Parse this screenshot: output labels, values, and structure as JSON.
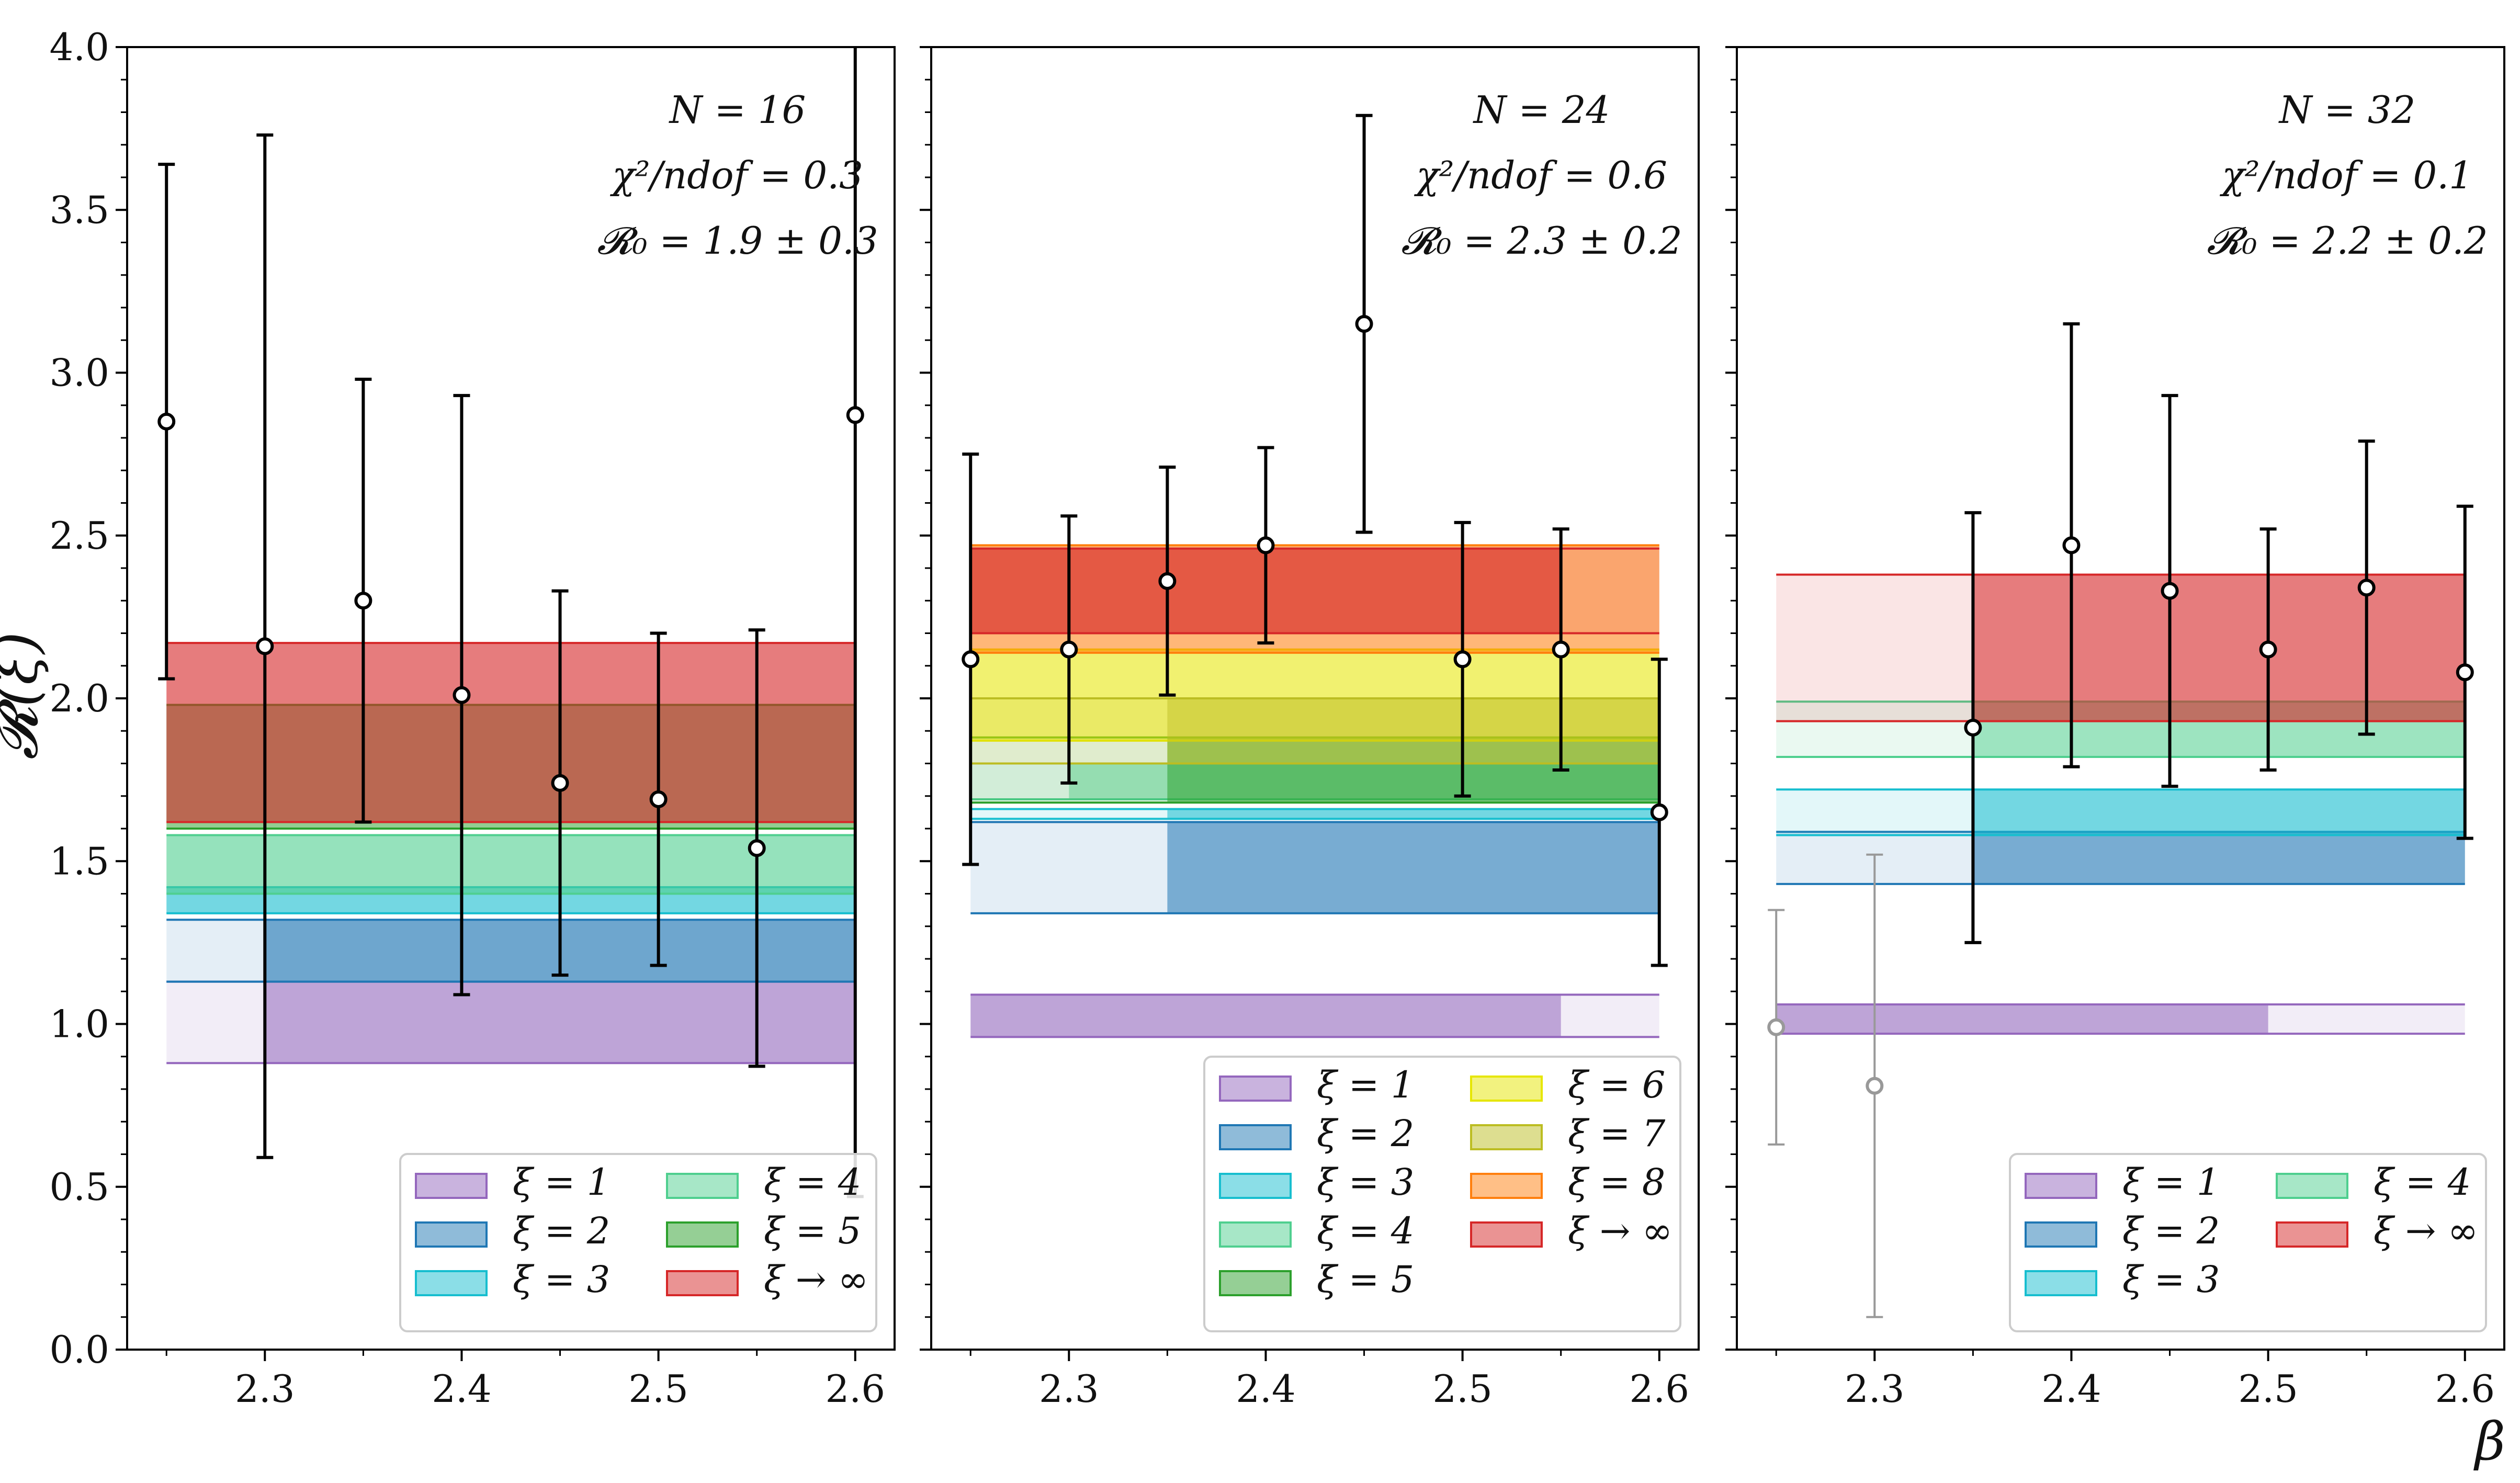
{
  "figure": {
    "y_axis_label": "𝓡(ξ)",
    "x_axis_label": "β"
  },
  "colors": {
    "xi1": "#9467bd",
    "xi2": "#1f77b4",
    "xi3": "#17becf",
    "xi4": "#4fcf8f",
    "xi5": "#2ca02c",
    "xi6": "#e6e600",
    "xi7": "#bcbd22",
    "xi8": "#ff7f0e",
    "xiinf": "#d62728",
    "points": "#000000",
    "excluded_points": "#999999"
  },
  "chart_data": [
    {
      "type": "scatter",
      "name": "N = 16",
      "annotations": [
        "N = 16",
        "χ²/ndof = 0.3",
        "𝓡₀ = 1.9 ± 0.3"
      ],
      "x_ticks": [
        "2.3",
        "2.4",
        "2.5",
        "2.6"
      ],
      "y_ticks": [
        "0.0",
        "0.5",
        "1.0",
        "1.5",
        "2.0",
        "2.5",
        "3.0",
        "3.5",
        "4.0"
      ],
      "xlim": [
        2.23,
        2.62
      ],
      "ylim": [
        0,
        4
      ],
      "series": [
        {
          "x": 2.25,
          "y": 2.85,
          "err_low": 0.79,
          "err_high": 0.79,
          "excluded": false
        },
        {
          "x": 2.3,
          "y": 2.16,
          "err_low": 1.57,
          "err_high": 1.57,
          "excluded": false
        },
        {
          "x": 2.35,
          "y": 2.3,
          "err_low": 0.68,
          "err_high": 0.68,
          "excluded": false
        },
        {
          "x": 2.4,
          "y": 2.01,
          "err_low": 0.92,
          "err_high": 0.92,
          "excluded": false
        },
        {
          "x": 2.45,
          "y": 1.74,
          "err_low": 0.59,
          "err_high": 0.59,
          "excluded": false
        },
        {
          "x": 2.5,
          "y": 1.69,
          "err_low": 0.51,
          "err_high": 0.51,
          "excluded": false
        },
        {
          "x": 2.55,
          "y": 1.54,
          "err_low": 0.67,
          "err_high": 0.67,
          "excluded": false
        },
        {
          "x": 2.6,
          "y": 2.87,
          "err_low": 2.4,
          "err_high": 2.4,
          "excluded": false
        }
      ],
      "bands": [
        {
          "color_key": "xi1",
          "y_low": 0.88,
          "y_high": 1.13,
          "fit_x_start": 2.3,
          "x_start": 2.25,
          "x_end": 2.6,
          "fit_opacity": 0.55
        },
        {
          "color_key": "xi2",
          "y_low": 1.13,
          "y_high": 1.32,
          "fit_x_start": 2.3,
          "x_start": 2.25,
          "x_end": 2.6,
          "fit_opacity": 0.6
        },
        {
          "color_key": "xi3",
          "y_low": 1.34,
          "y_high": 1.42,
          "fit_x_start": 2.25,
          "x_start": 2.25,
          "x_end": 2.6,
          "fit_opacity": 0.55
        },
        {
          "color_key": "xi4",
          "y_low": 1.4,
          "y_high": 1.58,
          "fit_x_start": 2.25,
          "x_start": 2.25,
          "x_end": 2.6,
          "fit_opacity": 0.55
        },
        {
          "color_key": "xi5",
          "y_low": 1.6,
          "y_high": 1.98,
          "fit_x_start": 2.25,
          "x_start": 2.25,
          "x_end": 2.6,
          "fit_opacity": 0.45
        },
        {
          "color_key": "xiinf",
          "y_low": 1.62,
          "y_high": 2.17,
          "fit_x_start": 2.25,
          "x_start": 2.25,
          "x_end": 2.6,
          "fit_opacity": 0.55
        }
      ],
      "legend": {
        "position": "lower right",
        "columns": 2,
        "entries": [
          {
            "label": "ξ = 1",
            "color_key": "xi1"
          },
          {
            "label": "ξ = 2",
            "color_key": "xi2"
          },
          {
            "label": "ξ = 3",
            "color_key": "xi3"
          },
          {
            "label": "ξ = 4",
            "color_key": "xi4"
          },
          {
            "label": "ξ = 5",
            "color_key": "xi5"
          },
          {
            "label": "ξ → ∞",
            "color_key": "xiinf"
          }
        ]
      }
    },
    {
      "type": "scatter",
      "name": "N = 24",
      "annotations": [
        "N = 24",
        "χ²/ndof = 0.6",
        "𝓡₀ = 2.3 ± 0.2"
      ],
      "x_ticks": [
        "2.3",
        "2.4",
        "2.5",
        "2.6"
      ],
      "y_ticks": [],
      "xlim": [
        2.23,
        2.62
      ],
      "ylim": [
        0,
        4
      ],
      "series": [
        {
          "x": 2.25,
          "y": 2.12,
          "err_low": 0.63,
          "err_high": 0.63,
          "excluded": false
        },
        {
          "x": 2.3,
          "y": 2.15,
          "err_low": 0.41,
          "err_high": 0.41,
          "excluded": false
        },
        {
          "x": 2.35,
          "y": 2.36,
          "err_low": 0.35,
          "err_high": 0.35,
          "excluded": false
        },
        {
          "x": 2.4,
          "y": 2.47,
          "err_low": 0.3,
          "err_high": 0.3,
          "excluded": false
        },
        {
          "x": 2.45,
          "y": 3.15,
          "err_low": 0.64,
          "err_high": 0.64,
          "excluded": false
        },
        {
          "x": 2.5,
          "y": 2.12,
          "err_low": 0.42,
          "err_high": 0.42,
          "excluded": false
        },
        {
          "x": 2.55,
          "y": 2.15,
          "err_low": 0.37,
          "err_high": 0.37,
          "excluded": false
        },
        {
          "x": 2.6,
          "y": 1.65,
          "err_low": 0.47,
          "err_high": 0.47,
          "excluded": false
        }
      ],
      "bands": [
        {
          "color_key": "xi1",
          "y_low": 0.96,
          "y_high": 1.09,
          "fit_x_start": 2.25,
          "fit_x_end": 2.55,
          "x_start": 2.25,
          "x_end": 2.6,
          "fit_opacity": 0.55
        },
        {
          "color_key": "xi2",
          "y_low": 1.34,
          "y_high": 1.62,
          "fit_x_start": 2.35,
          "x_start": 2.25,
          "x_end": 2.6,
          "fit_opacity": 0.55
        },
        {
          "color_key": "xi3",
          "y_low": 1.63,
          "y_high": 1.66,
          "fit_x_start": 2.35,
          "x_start": 2.25,
          "x_end": 2.6,
          "fit_opacity": 0.55
        },
        {
          "color_key": "xi4",
          "y_low": 1.69,
          "y_high": 1.8,
          "fit_x_start": 2.3,
          "x_start": 2.25,
          "x_end": 2.6,
          "fit_opacity": 0.45
        },
        {
          "color_key": "xi5",
          "y_low": 1.68,
          "y_high": 1.88,
          "fit_x_start": 2.35,
          "x_start": 2.25,
          "x_end": 2.6,
          "fit_opacity": 0.55
        },
        {
          "color_key": "xi6",
          "y_low": 1.87,
          "y_high": 2.15,
          "fit_x_start": 2.25,
          "x_start": 2.25,
          "x_end": 2.6,
          "fit_opacity": 0.5
        },
        {
          "color_key": "xi7",
          "y_low": 1.8,
          "y_high": 2.0,
          "fit_x_start": 2.35,
          "x_start": 2.25,
          "x_end": 2.6,
          "fit_opacity": 0.45
        },
        {
          "color_key": "xi8",
          "y_low": 2.14,
          "y_high": 2.47,
          "fit_x_start": 2.25,
          "x_start": 2.25,
          "x_end": 2.6,
          "fit_opacity": 0.5
        },
        {
          "color_key": "xiinf",
          "y_low": 2.2,
          "y_high": 2.46,
          "fit_x_start": 2.25,
          "fit_x_end": 2.55,
          "x_start": 2.25,
          "x_end": 2.6,
          "fit_opacity": 0.6
        }
      ],
      "legend": {
        "position": "lower right",
        "columns": 2,
        "entries": [
          {
            "label": "ξ = 1",
            "color_key": "xi1"
          },
          {
            "label": "ξ = 2",
            "color_key": "xi2"
          },
          {
            "label": "ξ = 3",
            "color_key": "xi3"
          },
          {
            "label": "ξ = 4",
            "color_key": "xi4"
          },
          {
            "label": "ξ = 5",
            "color_key": "xi5"
          },
          {
            "label": "ξ = 6",
            "color_key": "xi6"
          },
          {
            "label": "ξ = 7",
            "color_key": "xi7"
          },
          {
            "label": "ξ = 8",
            "color_key": "xi8"
          },
          {
            "label": "ξ → ∞",
            "color_key": "xiinf"
          }
        ]
      }
    },
    {
      "type": "scatter",
      "name": "N = 32",
      "annotations": [
        "N = 32",
        "χ²/ndof = 0.1",
        "𝓡₀ = 2.2 ± 0.2"
      ],
      "x_ticks": [
        "2.3",
        "2.4",
        "2.5",
        "2.6"
      ],
      "y_ticks": [],
      "xlim": [
        2.23,
        2.62
      ],
      "ylim": [
        0,
        4
      ],
      "series": [
        {
          "x": 2.25,
          "y": 0.99,
          "err_low": 0.36,
          "err_high": 0.36,
          "excluded": true
        },
        {
          "x": 2.3,
          "y": 0.81,
          "err_low": 0.71,
          "err_high": 0.71,
          "excluded": true
        },
        {
          "x": 2.35,
          "y": 1.91,
          "err_low": 0.66,
          "err_high": 0.66,
          "excluded": false
        },
        {
          "x": 2.4,
          "y": 2.47,
          "err_low": 0.68,
          "err_high": 0.68,
          "excluded": false
        },
        {
          "x": 2.45,
          "y": 2.33,
          "err_low": 0.6,
          "err_high": 0.6,
          "excluded": false
        },
        {
          "x": 2.5,
          "y": 2.15,
          "err_low": 0.37,
          "err_high": 0.37,
          "excluded": false
        },
        {
          "x": 2.55,
          "y": 2.34,
          "err_low": 0.45,
          "err_high": 0.45,
          "excluded": false
        },
        {
          "x": 2.6,
          "y": 2.08,
          "err_low": 0.51,
          "err_high": 0.51,
          "excluded": false
        }
      ],
      "bands": [
        {
          "color_key": "xi1",
          "y_low": 0.97,
          "y_high": 1.06,
          "fit_x_start": 2.25,
          "fit_x_end": 2.5,
          "x_start": 2.25,
          "x_end": 2.6,
          "fit_opacity": 0.55
        },
        {
          "color_key": "xi2",
          "y_low": 1.43,
          "y_high": 1.59,
          "fit_x_start": 2.35,
          "x_start": 2.25,
          "x_end": 2.6,
          "fit_opacity": 0.55
        },
        {
          "color_key": "xi3",
          "y_low": 1.58,
          "y_high": 1.72,
          "fit_x_start": 2.35,
          "x_start": 2.25,
          "x_end": 2.6,
          "fit_opacity": 0.55
        },
        {
          "color_key": "xi4",
          "y_low": 1.82,
          "y_high": 1.99,
          "fit_x_start": 2.35,
          "x_start": 2.25,
          "x_end": 2.6,
          "fit_opacity": 0.5
        },
        {
          "color_key": "xiinf",
          "y_low": 1.93,
          "y_high": 2.38,
          "fit_x_start": 2.35,
          "x_start": 2.25,
          "x_end": 2.6,
          "fit_opacity": 0.55
        }
      ],
      "legend": {
        "position": "lower right",
        "columns": 2,
        "entries": [
          {
            "label": "ξ = 1",
            "color_key": "xi1"
          },
          {
            "label": "ξ = 2",
            "color_key": "xi2"
          },
          {
            "label": "ξ = 3",
            "color_key": "xi3"
          },
          {
            "label": "ξ = 4",
            "color_key": "xi4"
          },
          {
            "label": "ξ → ∞",
            "color_key": "xiinf"
          }
        ]
      }
    }
  ]
}
